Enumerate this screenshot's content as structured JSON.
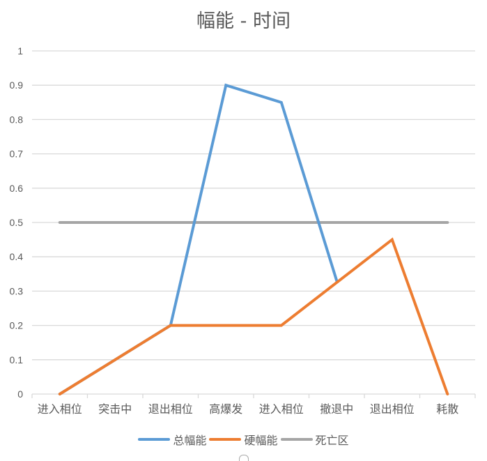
{
  "chart_data": {
    "type": "line",
    "title": "幅能 - 时间",
    "xlabel": "",
    "ylabel": "",
    "ylim": [
      0,
      1
    ],
    "yticks": [
      "0",
      "0.1",
      "0.2",
      "0.3",
      "0.4",
      "0.5",
      "0.6",
      "0.7",
      "0.8",
      "0.9",
      "1"
    ],
    "categories": [
      "进入相位",
      "突击中",
      "退出相位",
      "高爆发",
      "进入相位",
      "撤退中",
      "退出相位",
      "耗散"
    ],
    "grid": true,
    "legend_position": "bottom",
    "series": [
      {
        "name": "总幅能",
        "color": "#5B9BD5",
        "values": [
          0,
          0.1,
          0.2,
          0.9,
          0.85,
          0.33,
          null,
          null
        ]
      },
      {
        "name": "硬幅能",
        "color": "#ED7D31",
        "values": [
          0,
          0.1,
          0.2,
          0.2,
          0.2,
          0.325,
          0.45,
          0
        ]
      },
      {
        "name": "死亡区",
        "color": "#A5A5A5",
        "values": [
          0.5,
          0.5,
          0.5,
          0.5,
          0.5,
          0.5,
          0.5,
          0.5
        ]
      }
    ]
  },
  "legend": {
    "items": [
      {
        "label": "总幅能",
        "color": "#5B9BD5"
      },
      {
        "label": "硬幅能",
        "color": "#ED7D31"
      },
      {
        "label": "死亡区",
        "color": "#A5A5A5"
      }
    ]
  }
}
